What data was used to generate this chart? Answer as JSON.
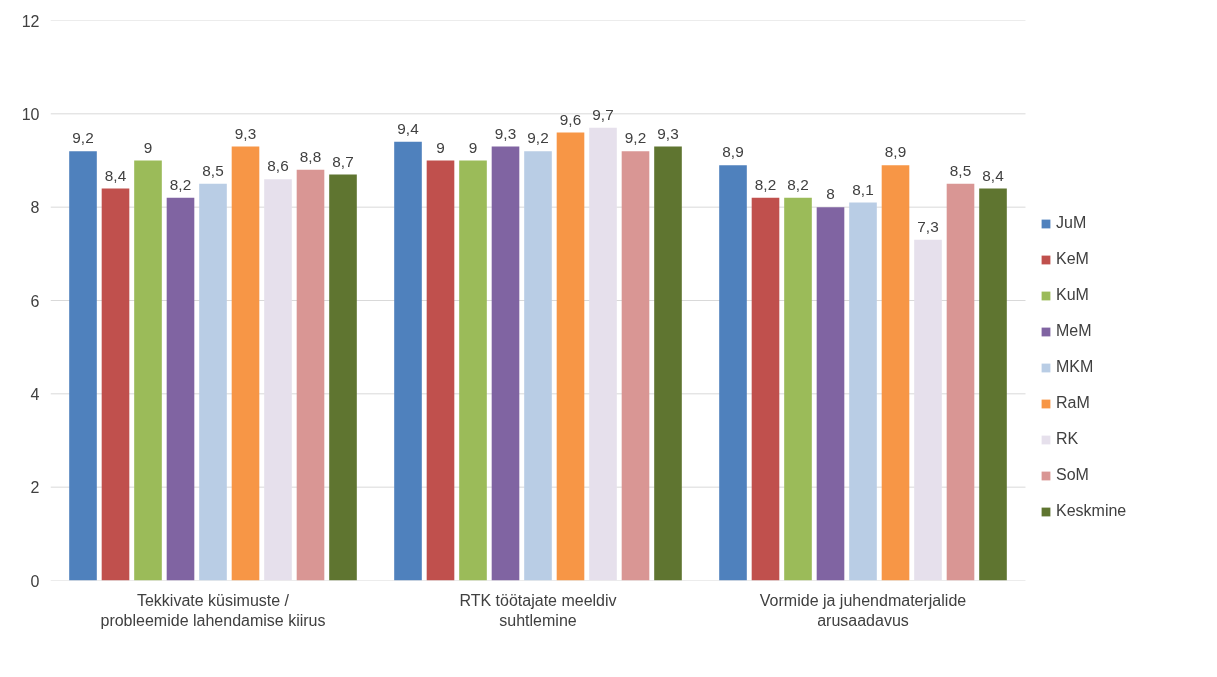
{
  "chart_data": {
    "type": "bar",
    "categories": [
      "Tekkivate küsimuste /\nprobleemide lahendamise kiirus",
      "RTK töötajate meeldiv\nsuhtlemine",
      "Vormide ja juhendmaterjalide\narusaadavus"
    ],
    "series": [
      {
        "name": "JuM",
        "color": "#4f81bd",
        "values": [
          9.2,
          9.4,
          8.9
        ],
        "value_labels": [
          "9,2",
          "9,4",
          "8,9"
        ]
      },
      {
        "name": "KeM",
        "color": "#c0504d",
        "values": [
          8.4,
          9,
          8.2
        ],
        "value_labels": [
          "8,4",
          "9",
          "8,2"
        ]
      },
      {
        "name": "KuM",
        "color": "#9bbb59",
        "values": [
          9,
          9,
          8.2
        ],
        "value_labels": [
          "9",
          "9",
          "8,2"
        ]
      },
      {
        "name": "MeM",
        "color": "#8064a2",
        "values": [
          8.2,
          9.3,
          8
        ],
        "value_labels": [
          "8,2",
          "9,3",
          "8"
        ]
      },
      {
        "name": "MKM",
        "color": "#b9cde5",
        "values": [
          8.5,
          9.2,
          8.1
        ],
        "value_labels": [
          "8,5",
          "9,2",
          "8,1"
        ]
      },
      {
        "name": "RaM",
        "color": "#f79646",
        "values": [
          9.3,
          9.6,
          8.9
        ],
        "value_labels": [
          "9,3",
          "9,6",
          "8,9"
        ]
      },
      {
        "name": "RK",
        "color": "#e6e0ec",
        "values": [
          8.6,
          9.7,
          7.3
        ],
        "value_labels": [
          "8,6",
          "9,7",
          "7,3"
        ]
      },
      {
        "name": "SoM",
        "color": "#d99694",
        "values": [
          8.8,
          9.2,
          8.5
        ],
        "value_labels": [
          "8,8",
          "9,2",
          "8,5"
        ]
      },
      {
        "name": "Keskmine",
        "color": "#5f7530",
        "values": [
          8.7,
          9.3,
          8.4
        ],
        "value_labels": [
          "8,7",
          "9,3",
          "8,4"
        ]
      }
    ],
    "ylim": [
      0,
      12
    ],
    "yticks": [
      0,
      2,
      4,
      6,
      8,
      10,
      12
    ],
    "grid": "y",
    "legend": "right"
  }
}
